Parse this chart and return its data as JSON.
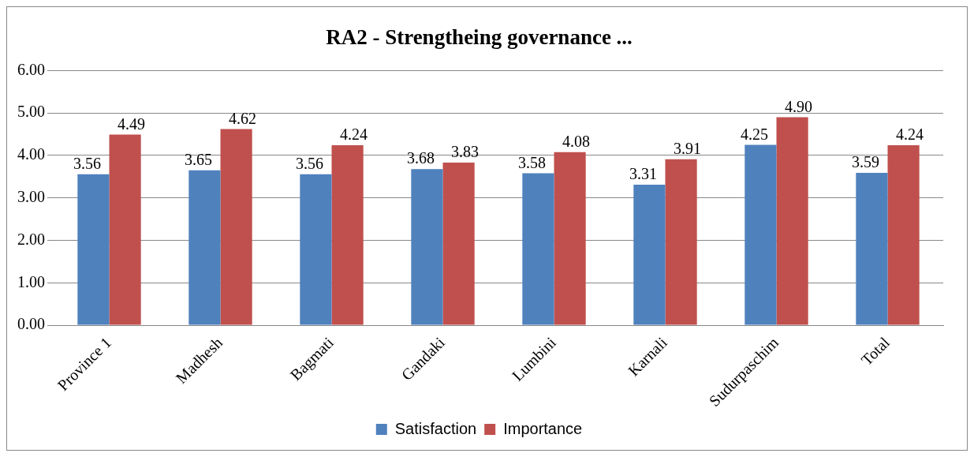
{
  "chart_data": {
    "type": "bar",
    "title": "RA2 - Strengtheing governance ...",
    "categories": [
      "Province 1",
      "Madhesh",
      "Bagmati",
      "Gandaki",
      "Lumbini",
      "Karnali",
      "Sudurpaschim",
      "Total"
    ],
    "series": [
      {
        "name": "Satisfaction",
        "color": "#4f81bd",
        "values": [
          3.56,
          3.65,
          3.56,
          3.68,
          3.58,
          3.31,
          4.25,
          3.59
        ],
        "value_labels": [
          "3.56",
          "3.65",
          "3.56",
          "3.68",
          "3.58",
          "3.31",
          "4.25",
          "3.59"
        ]
      },
      {
        "name": "Importance",
        "color": "#c0504d",
        "values": [
          4.49,
          4.62,
          4.24,
          3.83,
          4.08,
          3.91,
          4.9,
          4.24
        ],
        "value_labels": [
          "4.49",
          "4.62",
          "4.24",
          "3.83",
          "4.08",
          "3.91",
          "4.90",
          "4.24"
        ]
      }
    ],
    "ylim": [
      0,
      6
    ],
    "yticks": [
      {
        "value": 0,
        "label": "0.00"
      },
      {
        "value": 1,
        "label": "1.00"
      },
      {
        "value": 2,
        "label": "2.00"
      },
      {
        "value": 3,
        "label": "3.00"
      },
      {
        "value": 4,
        "label": "4.00"
      },
      {
        "value": 5,
        "label": "5.00"
      },
      {
        "value": 6,
        "label": "6.00"
      }
    ],
    "grid": "y",
    "legend": "bottom"
  }
}
